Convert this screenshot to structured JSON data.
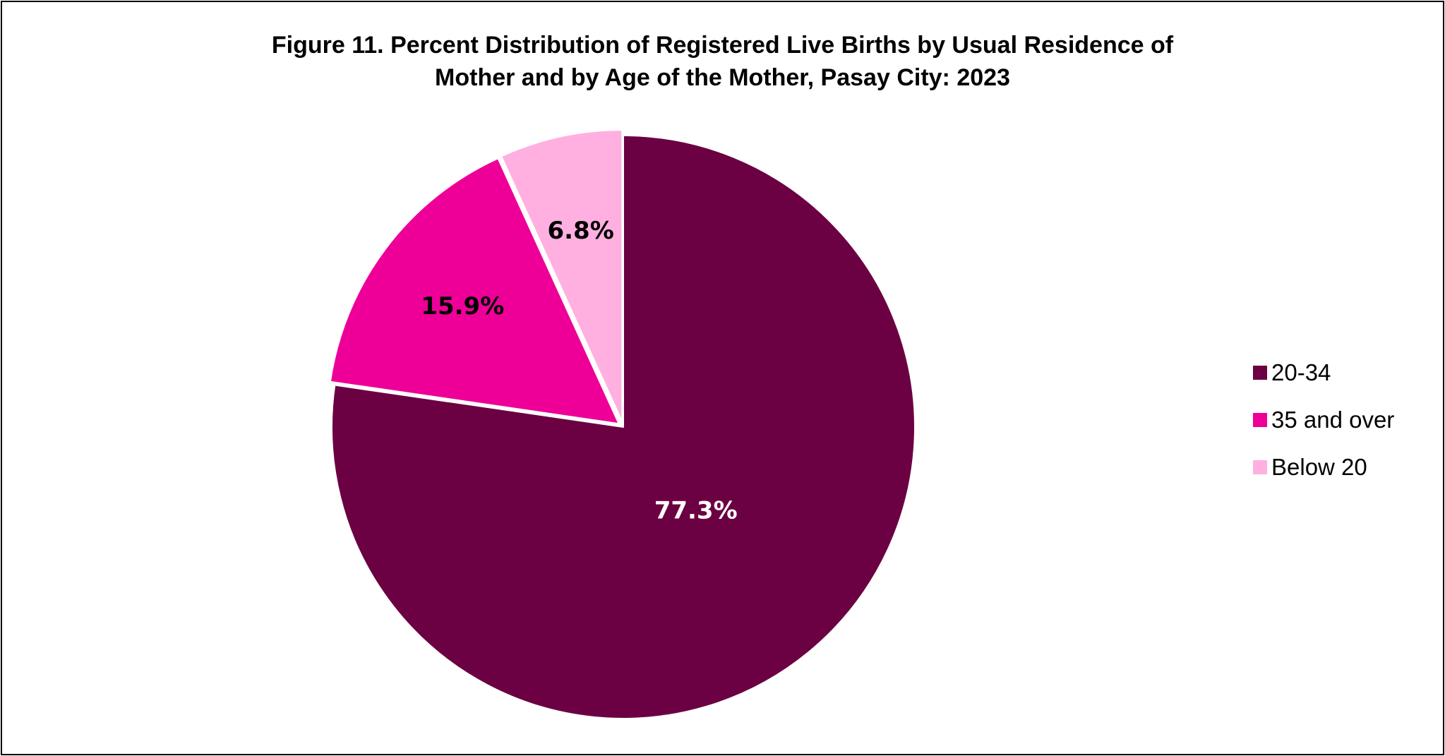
{
  "chart_data": {
    "type": "pie",
    "title_lines": [
      "Figure 11. Percent Distribution of Registered Live Births by Usual Residence of",
      "Mother and by Age of the Mother, Pasay City: 2023"
    ],
    "slices": [
      {
        "name": "20-34",
        "value": 77.3,
        "label": "77.3%",
        "color": "#6b0042",
        "label_color": "#ffffff",
        "exploded": false
      },
      {
        "name": "35 and over",
        "value": 15.9,
        "label": "15.9%",
        "color": "#ee0098",
        "label_color": "#000000",
        "exploded": true
      },
      {
        "name": "Below 20",
        "value": 6.8,
        "label": "6.8%",
        "color": "#ffb0e0",
        "label_color": "#000000",
        "exploded": true
      }
    ],
    "start_angle": "12 o'clock",
    "direction": "clockwise",
    "legend_position": "right"
  }
}
